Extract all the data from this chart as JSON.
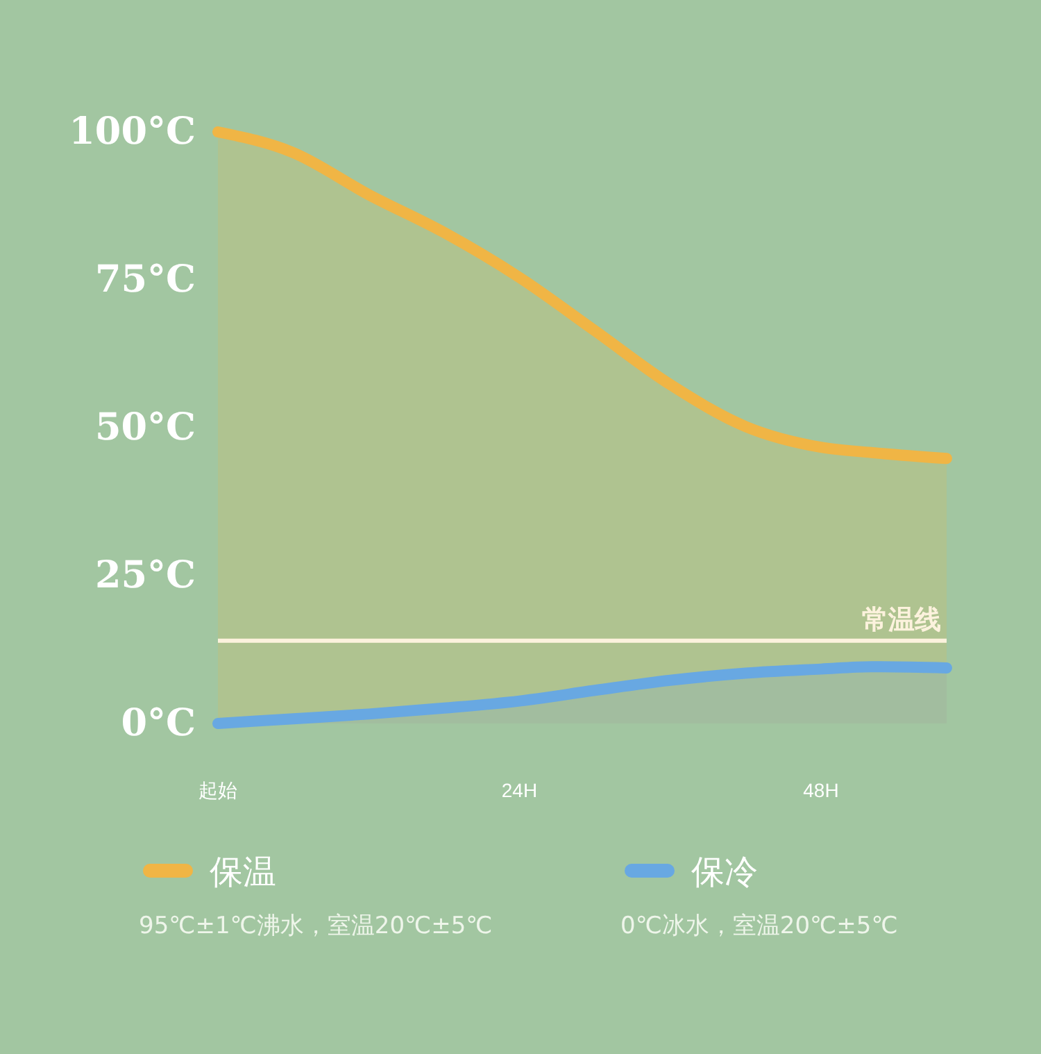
{
  "chart_data": {
    "type": "area",
    "x": [
      0,
      6,
      12,
      18,
      24,
      30,
      36,
      42,
      48,
      52,
      58
    ],
    "series": [
      {
        "name": "保温",
        "color": "#f0b545",
        "values": [
          100,
          96.5,
          89.4,
          83,
          75.4,
          66.4,
          57.3,
          50.2,
          46.7,
          45.8,
          44.8
        ]
      },
      {
        "name": "保冷",
        "color": "#68a8e2",
        "values": [
          0,
          0.8,
          1.6,
          2.6,
          3.8,
          5.6,
          7.3,
          8.5,
          9.2,
          9.6,
          9.4
        ]
      }
    ],
    "xlim": [
      0,
      58
    ],
    "xticks": [
      {
        "value": 0,
        "label": "起始"
      },
      {
        "value": 24,
        "label": "24H"
      },
      {
        "value": 48,
        "label": "48H"
      }
    ],
    "ylim": [
      0,
      100
    ],
    "yticks": [
      {
        "value": 0,
        "label": "0°C"
      },
      {
        "value": 25,
        "label": "25°C"
      },
      {
        "value": 50,
        "label": "50°C"
      },
      {
        "value": 75,
        "label": "75°C"
      },
      {
        "value": 100,
        "label": "100°C"
      }
    ],
    "ref_lines": [
      {
        "axis": "y",
        "value": 14,
        "label": "常温线",
        "color": "#ffffff"
      }
    ],
    "legend": "bottom",
    "grid": false,
    "annotations": [
      "95℃±1℃沸水，室温20℃±5℃",
      "0℃冰水，室温20℃±5℃"
    ]
  }
}
